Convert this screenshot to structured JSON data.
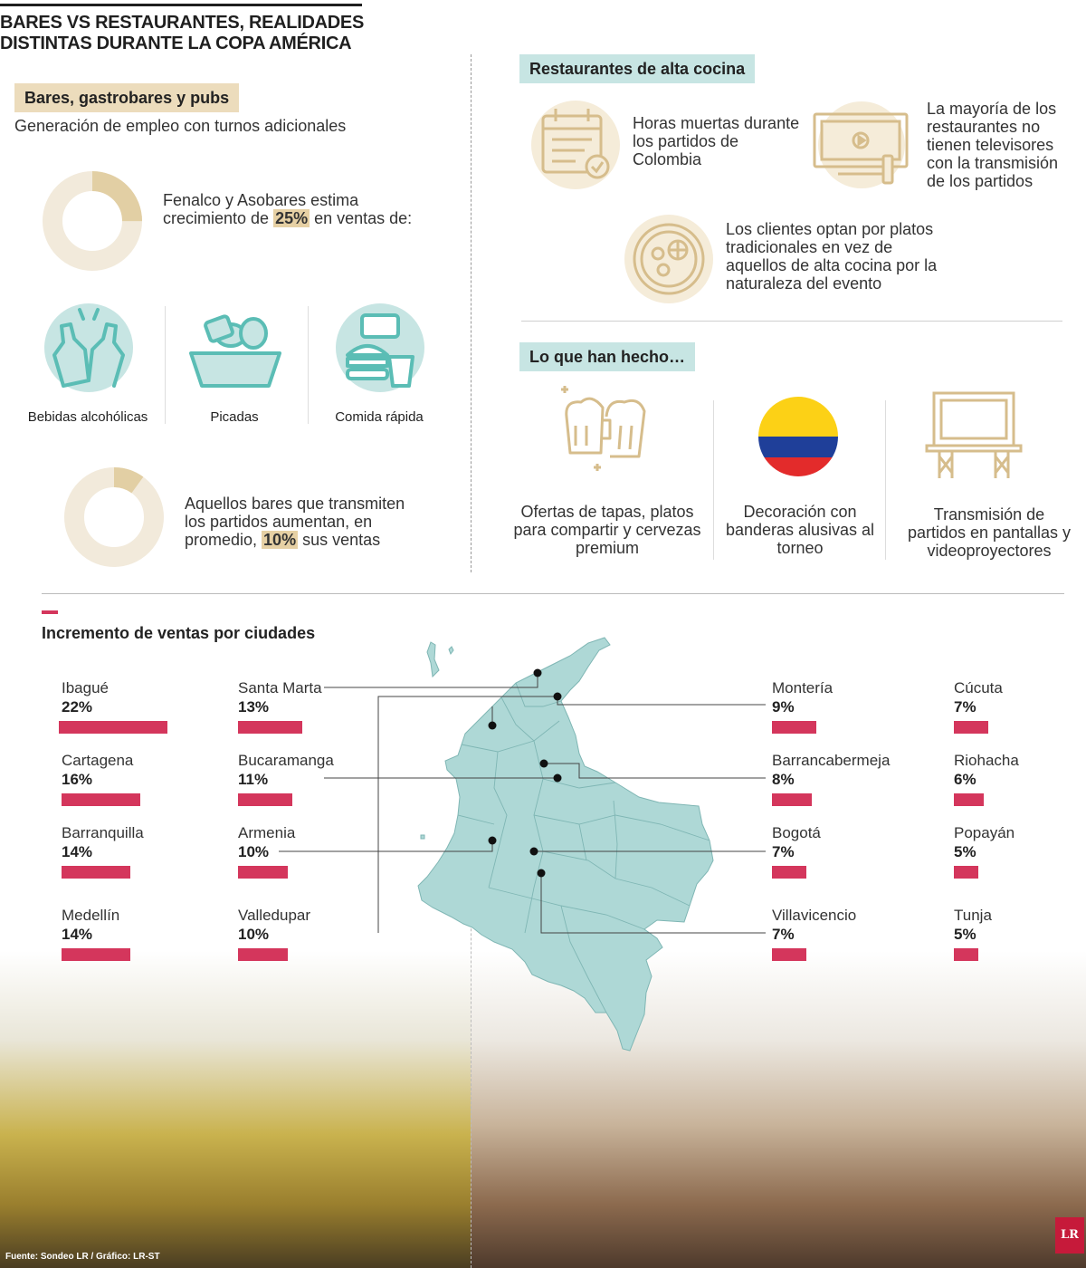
{
  "title": "BARES VS RESTAURANTES, REALIDADES DISTINTAS DURANTE LA COPA AMÉRICA",
  "bars_section": {
    "tag": "Bares, gastrobares y pubs",
    "subtitle": "Generación de empleo con turnos adicionales",
    "stat1": {
      "text_before": "Fenalco y Asobares estima crecimiento de ",
      "highlight": "25%",
      "text_after": " en ventas de:",
      "value": 25
    },
    "icons": [
      {
        "icon": "beer-bottles-icon",
        "label": "Bebidas alcohólicas"
      },
      {
        "icon": "snack-bowl-icon",
        "label": "Picadas"
      },
      {
        "icon": "fast-food-icon",
        "label": "Comida rápida"
      }
    ],
    "stat2": {
      "text_before": "Aquellos bares que transmiten los partidos aumentan, en promedio, ",
      "highlight": "10%",
      "text_after": " sus ventas",
      "value": 10
    }
  },
  "restaurants_section": {
    "tag": "Restaurantes de alta cocina",
    "items": [
      {
        "icon": "calendar-icon",
        "text": "Horas muertas durante los partidos de Colombia"
      },
      {
        "icon": "tv-icon",
        "text": "La mayoría de los restaurantes no tienen televisores con la transmisión de los partidos"
      },
      {
        "icon": "dish-icon",
        "text": "Los clientes optan por platos tradicionales en vez de aquellos de alta cocina por la naturaleza del evento"
      }
    ]
  },
  "actions_section": {
    "tag": "Lo que han hecho…",
    "items": [
      {
        "icon": "beer-mugs-icon",
        "text": "Ofertas de tapas, platos para compartir y cervezas premium"
      },
      {
        "icon": "colombia-flag-icon",
        "text": "Decoración con banderas alusivas al torneo"
      },
      {
        "icon": "screen-icon",
        "text": "Transmisión de partidos en pantallas y videoproyectores"
      }
    ]
  },
  "chart_data": {
    "type": "bar",
    "title": "Incremento de ventas por ciudades",
    "unit": "%",
    "categories": [
      "Ibagué",
      "Cartagena",
      "Barranquilla",
      "Medellín",
      "Santa Marta",
      "Bucaramanga",
      "Armenia",
      "Valledupar",
      "Montería",
      "Barrancabermeja",
      "Bogotá",
      "Villavicencio",
      "Cúcuta",
      "Riohacha",
      "Popayán",
      "Tunja"
    ],
    "values": [
      22,
      16,
      14,
      14,
      13,
      11,
      10,
      10,
      9,
      8,
      7,
      7,
      7,
      6,
      5,
      5
    ],
    "labels": [
      "22%",
      "16%",
      "14%",
      "14%",
      "13%",
      "11%",
      "10%",
      "10%",
      "9%",
      "8%",
      "7%",
      "7%",
      "7%",
      "6%",
      "5%",
      "5%"
    ],
    "bar_color": "#d4365c"
  },
  "colors": {
    "beige": "#ecdcbc",
    "teal": "#c7e5e3",
    "map": "#aed8d6",
    "accent": "#d4365c"
  },
  "source": "Fuente: Sondeo LR / Gráfico: LR-ST",
  "logo": "LR"
}
